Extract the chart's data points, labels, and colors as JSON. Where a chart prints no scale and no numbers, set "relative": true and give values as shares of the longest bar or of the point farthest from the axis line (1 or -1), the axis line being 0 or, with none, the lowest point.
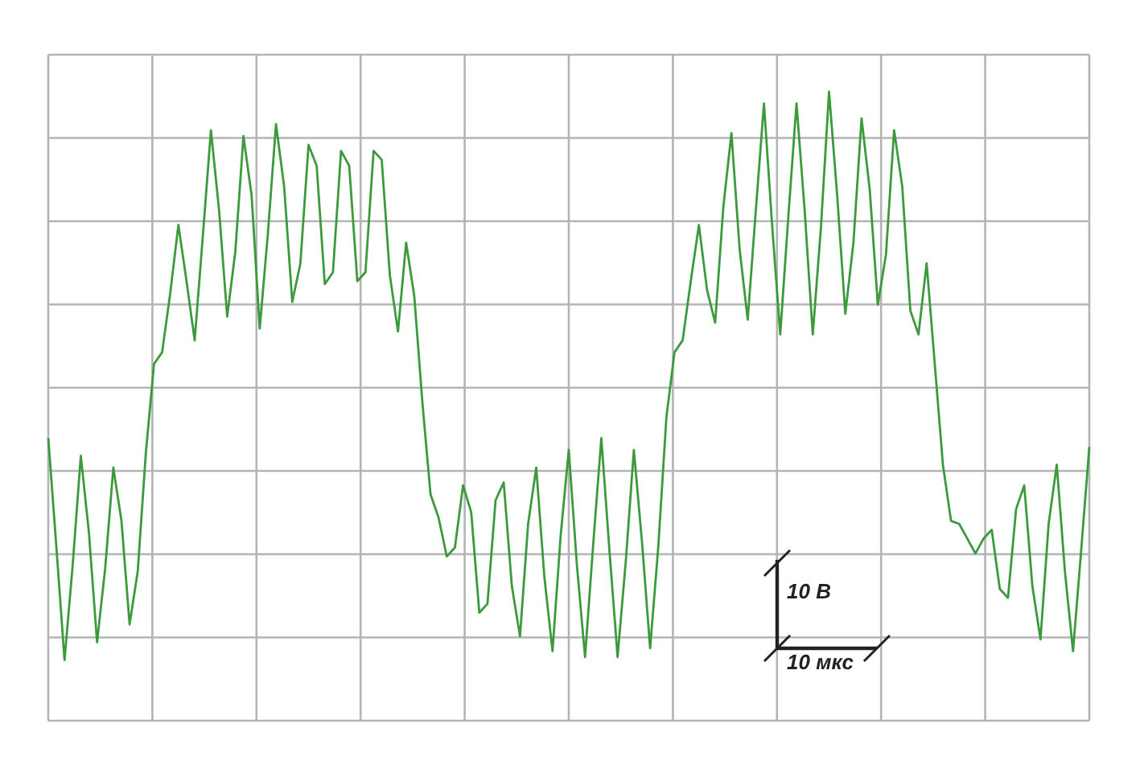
{
  "chart_data": {
    "type": "line",
    "relative": true,
    "grid": true,
    "marker": "none",
    "line_style": "solid",
    "categories": [
      null,
      null,
      null,
      null,
      null,
      null,
      null,
      null,
      null,
      null,
      null,
      null,
      null,
      null,
      null,
      null,
      null,
      null,
      null,
      null,
      null,
      null,
      null,
      null,
      null,
      null,
      null,
      null,
      null,
      null,
      null,
      null,
      null,
      null,
      null,
      null,
      null,
      null,
      null,
      null,
      null,
      null,
      null,
      null,
      null,
      null,
      null,
      null,
      null,
      null,
      null,
      null,
      null,
      null,
      null,
      null,
      null,
      null,
      null,
      null,
      null,
      null,
      null,
      null,
      null,
      null,
      null,
      null,
      null,
      null,
      null,
      null,
      null,
      null,
      null,
      null,
      null,
      null,
      null,
      null,
      null,
      null,
      null,
      null,
      null,
      null,
      null,
      null,
      null,
      null,
      null,
      null,
      null,
      null,
      null,
      null,
      null,
      null,
      null,
      null,
      null,
      null,
      null,
      null,
      null,
      null,
      null,
      null,
      null,
      null,
      null,
      null,
      null,
      null,
      null,
      null,
      null,
      null,
      null,
      null,
      null,
      null,
      null,
      null,
      null,
      null,
      null,
      null,
      null
    ],
    "series": [
      {
        "color": "#3c9a3c",
        "values": [
          -0.17,
          -0.54,
          -0.92,
          -0.6,
          -0.23,
          -0.49,
          -0.86,
          -0.61,
          -0.27,
          -0.45,
          -0.8,
          -0.62,
          -0.22,
          0.08,
          0.12,
          0.32,
          0.55,
          0.36,
          0.16,
          0.51,
          0.87,
          0.6,
          0.24,
          0.46,
          0.85,
          0.65,
          0.2,
          0.52,
          0.89,
          0.68,
          0.29,
          0.42,
          0.82,
          0.75,
          0.35,
          0.39,
          0.8,
          0.75,
          0.36,
          0.39,
          0.8,
          0.77,
          0.38,
          0.19,
          0.49,
          0.31,
          -0.05,
          -0.36,
          -0.44,
          -0.57,
          -0.54,
          -0.33,
          -0.42,
          -0.76,
          -0.73,
          -0.38,
          -0.32,
          -0.67,
          -0.84,
          -0.46,
          -0.27,
          -0.64,
          -0.89,
          -0.5,
          -0.21,
          -0.6,
          -0.91,
          -0.53,
          -0.17,
          -0.55,
          -0.91,
          -0.59,
          -0.21,
          -0.52,
          -0.88,
          -0.54,
          -0.1,
          0.12,
          0.16,
          0.36,
          0.55,
          0.33,
          0.22,
          0.61,
          0.86,
          0.47,
          0.23,
          0.6,
          0.96,
          0.55,
          0.18,
          0.58,
          0.96,
          0.6,
          0.18,
          0.54,
          1.0,
          0.65,
          0.25,
          0.49,
          0.91,
          0.67,
          0.28,
          0.45,
          0.87,
          0.68,
          0.26,
          0.18,
          0.42,
          0.08,
          -0.26,
          -0.45,
          -0.46,
          -0.51,
          -0.56,
          -0.51,
          -0.48,
          -0.68,
          -0.71,
          -0.41,
          -0.33,
          -0.67,
          -0.85,
          -0.46,
          -0.26,
          -0.62,
          -0.89,
          -0.55,
          -0.2
        ]
      }
    ],
    "annotations": [
      "10 В",
      "10 мкс"
    ]
  }
}
